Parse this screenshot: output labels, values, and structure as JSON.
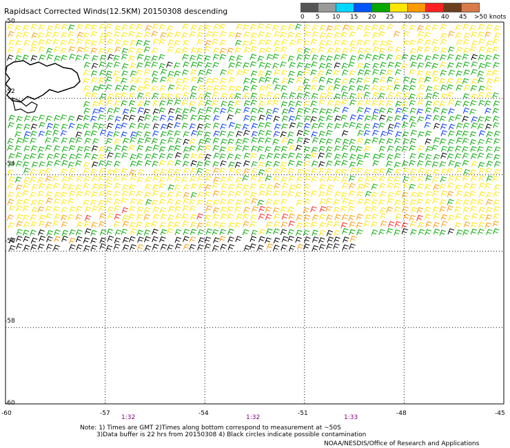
{
  "title": "Rapidsact Corrected Winds(12.5KM) 20150308 descending",
  "legend": {
    "colors": [
      "#555555",
      "#9a9a9a",
      "#00d7ff",
      "#0055ff",
      "#00a800",
      "#ffe600",
      "#ff9900",
      "#ff2222",
      "#6b3f1e",
      "#d97a4a",
      "#ff00ff",
      "#7a00a8"
    ],
    "labels": [
      "0",
      "5",
      "10",
      "15",
      "20",
      "25",
      "30",
      "35",
      "40",
      "45",
      ">50 knots"
    ]
  },
  "axes": {
    "lat_labels": [
      "-50",
      "-52",
      "-54",
      "-56",
      "-58",
      "-60"
    ],
    "lon_labels": [
      "-60",
      "-57",
      "-54",
      "-51",
      "-48",
      "-45"
    ],
    "times": [
      "1:32",
      "1:32",
      "1:33"
    ]
  },
  "notes": {
    "line1": "Note: 1) Times are GMT 2)Times along bottom correspond to measurement at ~50S",
    "line2": "3)Data buffer is 22 hrs from 20150308 4) Black circles indicate possible contamination"
  },
  "credit": "NOAA/NESDIS/Office of Research and Applications",
  "chart_data": {
    "type": "wind barb map",
    "lat_range": [
      -60,
      -50
    ],
    "lon_range": [
      -60,
      -45
    ],
    "grid": true,
    "colors_by_speed": {
      "black": "0-5 kt",
      "green": "15-20 kt",
      "blue": "10-15 kt",
      "yellow": "20-25 kt",
      "orange": "25-30 kt",
      "red": "30-35 kt"
    },
    "swath_bands": [
      {
        "lat_range": [
          -50,
          -50.7
        ],
        "speed_class": "yellow"
      },
      {
        "lat_range": [
          -50.7,
          -51.2
        ],
        "speed_class": "green"
      },
      {
        "lat_range": [
          -51.2,
          -52.2
        ],
        "speed_class": "yellow-green"
      },
      {
        "lat_range": [
          -52.2,
          -53.0
        ],
        "speed_class": "green-blue"
      },
      {
        "lat_range": [
          -53.0,
          -53.8
        ],
        "speed_class": "green"
      },
      {
        "lat_range": [
          -53.8,
          -54.7
        ],
        "speed_class": "yellow"
      },
      {
        "lat_range": [
          -54.7,
          -55.3
        ],
        "speed_class": "yellow-orange"
      },
      {
        "lat_range": [
          -55.3,
          -55.6
        ],
        "speed_class": "green"
      },
      {
        "lat_range": [
          -55.6,
          -56.0
        ],
        "speed_class": "black"
      }
    ]
  }
}
